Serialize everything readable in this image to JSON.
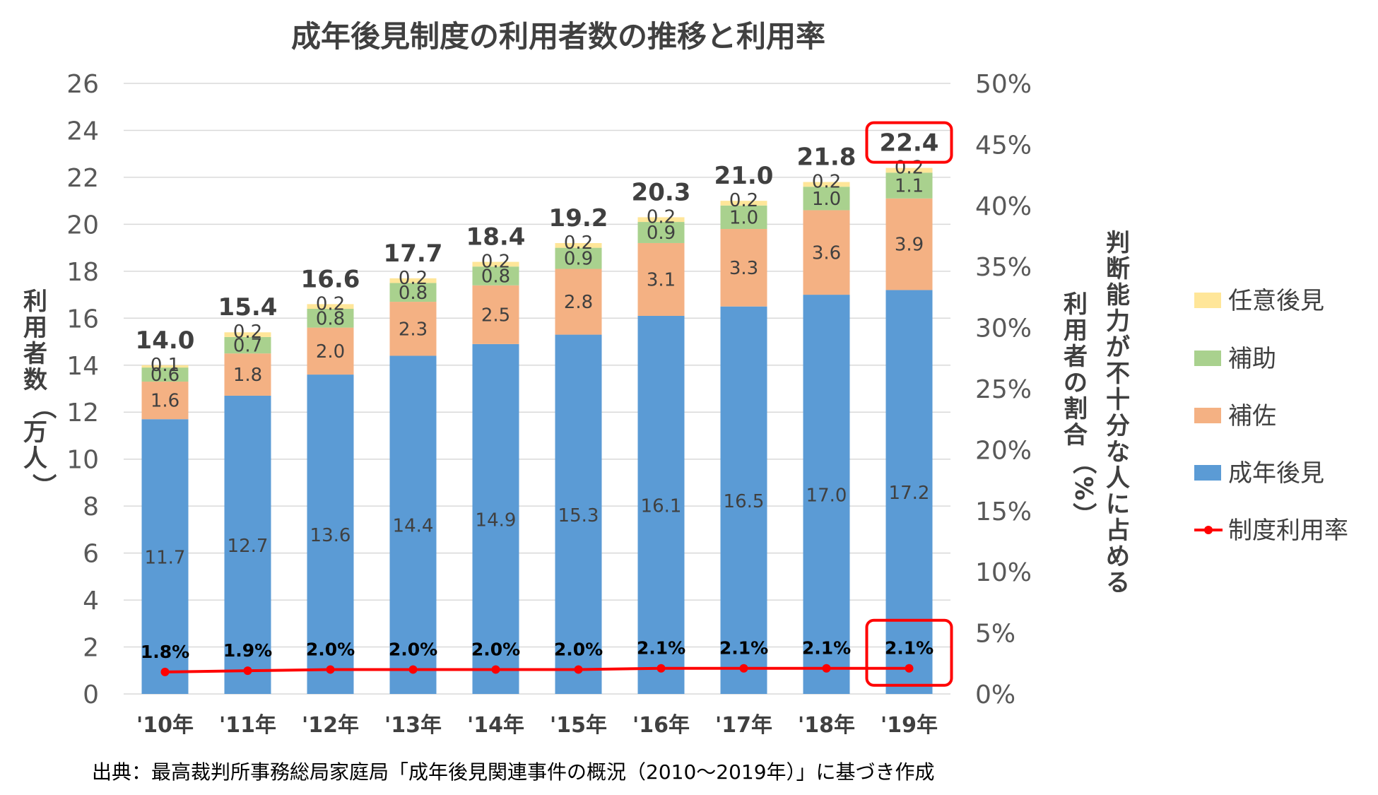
{
  "chart_data": {
    "type": "bar",
    "title": "成年後見制度の利用者数の推移と利用率",
    "categories": [
      "'10年",
      "'11年",
      "'12年",
      "'13年",
      "'14年",
      "'15年",
      "'16年",
      "'17年",
      "'18年",
      "'19年"
    ],
    "series": [
      {
        "name": "成年後見",
        "color": "#5b9bd5",
        "values": [
          11.7,
          12.7,
          13.6,
          14.4,
          14.9,
          15.3,
          16.1,
          16.5,
          17.0,
          17.2
        ]
      },
      {
        "name": "補佐",
        "color": "#f4b183",
        "values": [
          1.6,
          1.8,
          2.0,
          2.3,
          2.5,
          2.8,
          3.1,
          3.3,
          3.6,
          3.9
        ]
      },
      {
        "name": "補助",
        "color": "#a9d18e",
        "values": [
          0.6,
          0.7,
          0.8,
          0.8,
          0.8,
          0.9,
          0.9,
          1.0,
          1.0,
          1.1
        ]
      },
      {
        "name": "任意後見",
        "color": "#ffe699",
        "values": [
          0.1,
          0.2,
          0.2,
          0.2,
          0.2,
          0.2,
          0.2,
          0.2,
          0.2,
          0.2
        ]
      }
    ],
    "totals": [
      "14.0",
      "15.4",
      "16.6",
      "17.7",
      "18.4",
      "19.2",
      "20.3",
      "21.0",
      "21.8",
      "22.4"
    ],
    "line": {
      "name": "制度利用率",
      "color": "#ff0000",
      "values": [
        1.8,
        1.9,
        2.0,
        2.0,
        2.0,
        2.0,
        2.1,
        2.1,
        2.1,
        2.1
      ],
      "labels": [
        "1.8%",
        "1.9%",
        "2.0%",
        "2.0%",
        "2.0%",
        "2.0%",
        "2.1%",
        "2.1%",
        "2.1%",
        "2.1%"
      ]
    },
    "ylim": [
      0,
      26
    ],
    "y_ticks": [
      "0",
      "2",
      "4",
      "6",
      "8",
      "10",
      "12",
      "14",
      "16",
      "18",
      "20",
      "22",
      "24",
      "26"
    ],
    "y2lim": [
      0,
      50
    ],
    "y2_ticks": [
      "0%",
      "5%",
      "10%",
      "15%",
      "20%",
      "25%",
      "30%",
      "35%",
      "40%",
      "45%",
      "50%"
    ],
    "ylabel": "利用者数（万人）",
    "y2label_line1": "判断能力が不十分な人に占める",
    "y2label_line2": "利用者の割合（%）",
    "legend_position": "right",
    "legend_order": [
      "任意後見",
      "補助",
      "補佐",
      "成年後見",
      "制度利用率"
    ],
    "grid": true,
    "highlight_category": "'19年",
    "highlight_color": "#ff0000"
  },
  "source": "出典：最高裁判所事務総局家庭局「成年後見関連事件の概況（2010〜2019年）」に基づき作成"
}
